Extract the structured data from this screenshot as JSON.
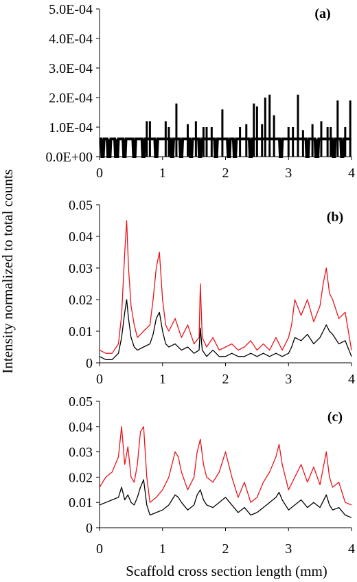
{
  "figure": {
    "ylabel": "Intensity normalized to total counts",
    "xlabel": "Scaffold cross section length (mm)"
  },
  "chart_data": [
    {
      "type": "line",
      "panel_label": "(a)",
      "xlim": [
        0,
        4
      ],
      "ylim": [
        0,
        0.0005
      ],
      "x_ticks": [
        0,
        1,
        2,
        3,
        4
      ],
      "x_tick_labels": [
        "0",
        "1",
        "2",
        "3",
        "4"
      ],
      "y_ticks": [
        0,
        0.0001,
        0.0002,
        0.0003,
        0.0004,
        0.0005
      ],
      "y_tick_labels": [
        "0.0E+00",
        "1.0E-04",
        "2.0E-04",
        "3.0E-04",
        "4.0E-04",
        "5.0E-04"
      ],
      "series_colors": [
        "#000000",
        "#e8141b"
      ],
      "baseline": 6e-05,
      "spikes": [
        {
          "x": 0.75,
          "y": 0.00012
        },
        {
          "x": 0.8,
          "y": 0.00012
        },
        {
          "x": 1.05,
          "y": 0.00012
        },
        {
          "x": 1.1,
          "y": 0.0001
        },
        {
          "x": 1.22,
          "y": 0.00018
        },
        {
          "x": 1.4,
          "y": 0.00011
        },
        {
          "x": 1.53,
          "y": 0.00012
        },
        {
          "x": 1.65,
          "y": 0.0001
        },
        {
          "x": 1.7,
          "y": 0.0001
        },
        {
          "x": 1.78,
          "y": 0.0001
        },
        {
          "x": 1.95,
          "y": 0.00016
        },
        {
          "x": 2.23,
          "y": 0.0001
        },
        {
          "x": 2.33,
          "y": 0.00011
        },
        {
          "x": 2.45,
          "y": 0.00018
        },
        {
          "x": 2.5,
          "y": 0.00017
        },
        {
          "x": 2.58,
          "y": 0.00011
        },
        {
          "x": 2.63,
          "y": 0.0002
        },
        {
          "x": 2.7,
          "y": 0.00021
        },
        {
          "x": 2.77,
          "y": 0.00014
        },
        {
          "x": 3.0,
          "y": 0.0001
        },
        {
          "x": 3.07,
          "y": 0.0001
        },
        {
          "x": 3.15,
          "y": 0.00021
        },
        {
          "x": 3.23,
          "y": 9e-05
        },
        {
          "x": 3.38,
          "y": 0.00011
        },
        {
          "x": 3.52,
          "y": 0.00012
        },
        {
          "x": 3.62,
          "y": 0.0001
        },
        {
          "x": 3.67,
          "y": 0.0001
        },
        {
          "x": 3.78,
          "y": 0.00019
        },
        {
          "x": 3.9,
          "y": 0.0001
        },
        {
          "x": 3.98,
          "y": 0.00019
        }
      ],
      "gaps": [
        {
          "x": 0.05,
          "y": 0
        },
        {
          "x": 0.15,
          "y": 0
        },
        {
          "x": 0.27,
          "y": 0
        },
        {
          "x": 0.4,
          "y": 0
        },
        {
          "x": 0.55,
          "y": 0
        },
        {
          "x": 0.7,
          "y": 0
        },
        {
          "x": 0.9,
          "y": 0
        },
        {
          "x": 1.15,
          "y": 0
        },
        {
          "x": 1.3,
          "y": 0
        },
        {
          "x": 1.45,
          "y": 0
        },
        {
          "x": 1.6,
          "y": 0
        },
        {
          "x": 1.85,
          "y": 0
        },
        {
          "x": 2.05,
          "y": 0
        },
        {
          "x": 2.15,
          "y": 0
        },
        {
          "x": 2.4,
          "y": 0
        },
        {
          "x": 2.88,
          "y": 0
        },
        {
          "x": 3.3,
          "y": 0
        },
        {
          "x": 3.45,
          "y": 0
        },
        {
          "x": 3.72,
          "y": 0
        },
        {
          "x": 3.85,
          "y": 0
        }
      ]
    },
    {
      "type": "line",
      "panel_label": "(b)",
      "xlim": [
        0,
        4
      ],
      "ylim": [
        0,
        0.05
      ],
      "x_ticks": [
        0,
        1,
        2,
        3,
        4
      ],
      "x_tick_labels": [
        "0",
        "1",
        "2",
        "3",
        "4"
      ],
      "y_ticks": [
        0,
        0.01,
        0.02,
        0.03,
        0.04,
        0.05
      ],
      "y_tick_labels": [
        "0",
        "0.01",
        "0.02",
        "0.03",
        "0.04",
        "0.05"
      ],
      "series": [
        {
          "color": "#e8141b",
          "x": [
            0,
            0.1,
            0.2,
            0.3,
            0.35,
            0.4,
            0.43,
            0.46,
            0.5,
            0.55,
            0.6,
            0.7,
            0.8,
            0.85,
            0.9,
            0.95,
            1.0,
            1.05,
            1.1,
            1.2,
            1.3,
            1.4,
            1.5,
            1.58,
            1.6,
            1.63,
            1.7,
            1.8,
            1.9,
            2.0,
            2.1,
            2.2,
            2.3,
            2.4,
            2.5,
            2.6,
            2.7,
            2.8,
            2.9,
            3.0,
            3.05,
            3.1,
            3.2,
            3.3,
            3.4,
            3.5,
            3.55,
            3.6,
            3.65,
            3.7,
            3.8,
            3.9,
            4.0
          ],
          "y": [
            0.004,
            0.003,
            0.003,
            0.006,
            0.015,
            0.035,
            0.045,
            0.03,
            0.018,
            0.012,
            0.008,
            0.01,
            0.012,
            0.02,
            0.03,
            0.035,
            0.02,
            0.012,
            0.01,
            0.014,
            0.008,
            0.012,
            0.006,
            0.008,
            0.025,
            0.008,
            0.005,
            0.008,
            0.004,
            0.005,
            0.006,
            0.004,
            0.005,
            0.007,
            0.004,
            0.006,
            0.004,
            0.008,
            0.004,
            0.008,
            0.012,
            0.02,
            0.015,
            0.02,
            0.013,
            0.018,
            0.025,
            0.03,
            0.022,
            0.02,
            0.014,
            0.016,
            0.004
          ]
        },
        {
          "color": "#000000",
          "x": [
            0,
            0.1,
            0.2,
            0.3,
            0.35,
            0.4,
            0.43,
            0.46,
            0.5,
            0.55,
            0.6,
            0.7,
            0.8,
            0.85,
            0.9,
            0.95,
            1.0,
            1.05,
            1.1,
            1.2,
            1.3,
            1.4,
            1.5,
            1.58,
            1.6,
            1.63,
            1.7,
            1.8,
            1.9,
            2.0,
            2.1,
            2.2,
            2.3,
            2.4,
            2.5,
            2.6,
            2.7,
            2.8,
            2.9,
            3.0,
            3.05,
            3.1,
            3.2,
            3.3,
            3.4,
            3.5,
            3.55,
            3.6,
            3.65,
            3.7,
            3.8,
            3.9,
            4.0
          ],
          "y": [
            0.002,
            0.001,
            0.001,
            0.003,
            0.008,
            0.016,
            0.02,
            0.014,
            0.008,
            0.005,
            0.004,
            0.005,
            0.006,
            0.009,
            0.014,
            0.016,
            0.01,
            0.006,
            0.005,
            0.006,
            0.004,
            0.005,
            0.003,
            0.004,
            0.011,
            0.004,
            0.002,
            0.004,
            0.002,
            0.002,
            0.003,
            0.002,
            0.002,
            0.003,
            0.002,
            0.003,
            0.002,
            0.003,
            0.002,
            0.003,
            0.005,
            0.008,
            0.007,
            0.009,
            0.006,
            0.008,
            0.01,
            0.012,
            0.01,
            0.009,
            0.006,
            0.007,
            0.002
          ]
        }
      ]
    },
    {
      "type": "line",
      "panel_label": "(c)",
      "xlim": [
        0,
        4
      ],
      "ylim": [
        0,
        0.05
      ],
      "x_ticks": [
        0,
        1,
        2,
        3,
        4
      ],
      "x_tick_labels": [
        "0",
        "1",
        "2",
        "3",
        "4"
      ],
      "y_ticks": [
        0,
        0.01,
        0.02,
        0.03,
        0.04,
        0.05
      ],
      "y_tick_labels": [
        "0",
        "0.01",
        "0.02",
        "0.03",
        "0.04",
        "0.05"
      ],
      "series": [
        {
          "color": "#e8141b",
          "x": [
            0,
            0.1,
            0.2,
            0.3,
            0.35,
            0.4,
            0.45,
            0.5,
            0.55,
            0.6,
            0.65,
            0.7,
            0.75,
            0.8,
            0.9,
            1.0,
            1.1,
            1.2,
            1.25,
            1.3,
            1.4,
            1.5,
            1.55,
            1.6,
            1.65,
            1.7,
            1.8,
            1.9,
            2.0,
            2.1,
            2.2,
            2.3,
            2.4,
            2.5,
            2.6,
            2.7,
            2.8,
            2.85,
            2.9,
            3.0,
            3.1,
            3.2,
            3.3,
            3.4,
            3.5,
            3.6,
            3.65,
            3.7,
            3.8,
            3.9,
            4.0
          ],
          "y": [
            0.016,
            0.02,
            0.022,
            0.028,
            0.04,
            0.025,
            0.032,
            0.02,
            0.018,
            0.025,
            0.038,
            0.04,
            0.02,
            0.01,
            0.012,
            0.015,
            0.02,
            0.03,
            0.028,
            0.022,
            0.015,
            0.02,
            0.03,
            0.035,
            0.025,
            0.02,
            0.018,
            0.022,
            0.03,
            0.02,
            0.012,
            0.018,
            0.01,
            0.012,
            0.018,
            0.022,
            0.028,
            0.033,
            0.025,
            0.015,
            0.02,
            0.025,
            0.018,
            0.024,
            0.017,
            0.03,
            0.02,
            0.016,
            0.018,
            0.01,
            0.009
          ]
        },
        {
          "color": "#000000",
          "x": [
            0,
            0.1,
            0.2,
            0.3,
            0.35,
            0.4,
            0.45,
            0.5,
            0.55,
            0.6,
            0.65,
            0.7,
            0.75,
            0.8,
            0.9,
            1.0,
            1.1,
            1.2,
            1.25,
            1.3,
            1.4,
            1.5,
            1.55,
            1.6,
            1.65,
            1.7,
            1.8,
            1.9,
            2.0,
            2.1,
            2.2,
            2.3,
            2.4,
            2.5,
            2.6,
            2.7,
            2.8,
            2.85,
            2.9,
            3.0,
            3.1,
            3.2,
            3.3,
            3.4,
            3.5,
            3.6,
            3.65,
            3.7,
            3.8,
            3.9,
            4.0
          ],
          "y": [
            0.009,
            0.01,
            0.011,
            0.012,
            0.016,
            0.011,
            0.013,
            0.01,
            0.009,
            0.012,
            0.016,
            0.019,
            0.009,
            0.005,
            0.006,
            0.007,
            0.009,
            0.013,
            0.012,
            0.01,
            0.007,
            0.009,
            0.013,
            0.015,
            0.011,
            0.009,
            0.008,
            0.01,
            0.012,
            0.009,
            0.006,
            0.008,
            0.005,
            0.006,
            0.008,
            0.01,
            0.012,
            0.014,
            0.011,
            0.007,
            0.009,
            0.011,
            0.008,
            0.01,
            0.008,
            0.013,
            0.009,
            0.007,
            0.008,
            0.005,
            0.004
          ]
        }
      ]
    }
  ]
}
